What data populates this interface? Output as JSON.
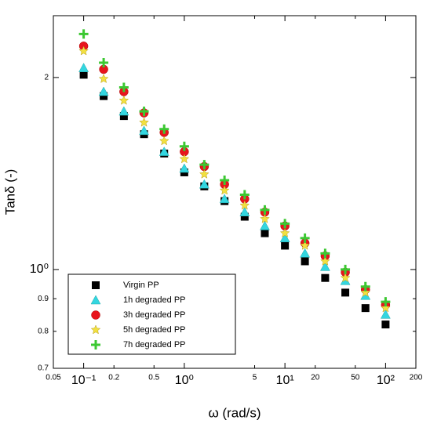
{
  "chart_data": {
    "type": "scatter",
    "xlabel": "ω (rad/s)",
    "ylabel": "Tanδ (-)",
    "xscale": "log",
    "yscale": "log",
    "xlim": [
      0.05,
      200
    ],
    "ylim": [
      0.7,
      2.5
    ],
    "xticks": [
      0.05,
      {
        "value": 0.1,
        "label": "10⁻¹"
      },
      0.2,
      0.5,
      {
        "value": 1,
        "label": "10⁰"
      },
      5,
      {
        "value": 10,
        "label": "10¹"
      },
      20,
      50,
      {
        "value": 100,
        "label": "10²"
      },
      200
    ],
    "yticks": [
      0.7,
      0.8,
      0.9,
      {
        "value": 1,
        "label": "10⁰"
      },
      2
    ],
    "legend": "lower left",
    "x": [
      0.1,
      0.158,
      0.251,
      0.398,
      0.631,
      1,
      1.58,
      2.51,
      3.98,
      6.31,
      10,
      15.8,
      25.1,
      39.8,
      63.1,
      100
    ],
    "series": [
      {
        "name": "Virgin PP",
        "color": "#000000",
        "marker": "square",
        "values": [
          2.02,
          1.87,
          1.74,
          1.63,
          1.52,
          1.42,
          1.35,
          1.28,
          1.21,
          1.14,
          1.09,
          1.03,
          0.97,
          0.92,
          0.87,
          0.82
        ]
      },
      {
        "name": "1h degraded PP",
        "color": "#33d6e0",
        "marker": "triangle",
        "values": [
          2.07,
          1.9,
          1.77,
          1.65,
          1.53,
          1.44,
          1.36,
          1.29,
          1.23,
          1.17,
          1.12,
          1.06,
          1.01,
          0.96,
          0.91,
          0.85
        ]
      },
      {
        "name": "3h degraded PP",
        "color": "#e8141c",
        "marker": "circle",
        "values": [
          2.24,
          2.06,
          1.9,
          1.76,
          1.64,
          1.53,
          1.45,
          1.36,
          1.29,
          1.23,
          1.17,
          1.1,
          1.05,
          0.99,
          0.93,
          0.88
        ]
      },
      {
        "name": "5h degraded PP",
        "color": "#f2e040",
        "marker": "star",
        "values": [
          2.2,
          1.99,
          1.84,
          1.7,
          1.59,
          1.49,
          1.41,
          1.33,
          1.26,
          1.2,
          1.14,
          1.09,
          1.03,
          0.97,
          0.92,
          0.87
        ]
      },
      {
        "name": "7h degraded PP",
        "color": "#3cc832",
        "marker": "plus",
        "values": [
          2.34,
          2.11,
          1.93,
          1.77,
          1.66,
          1.56,
          1.46,
          1.38,
          1.31,
          1.24,
          1.18,
          1.12,
          1.06,
          1.0,
          0.94,
          0.89
        ]
      }
    ]
  }
}
